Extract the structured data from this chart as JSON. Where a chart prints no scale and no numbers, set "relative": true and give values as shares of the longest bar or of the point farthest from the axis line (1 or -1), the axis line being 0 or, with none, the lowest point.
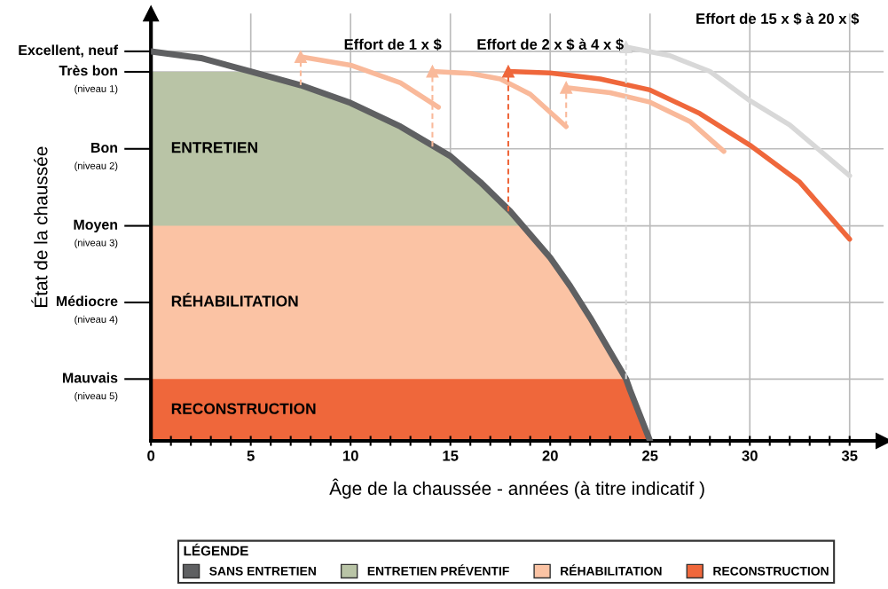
{
  "chart_data": {
    "type": "line",
    "relative": true,
    "xlabel": "Âge de la chaussée - années (à titre indicatif )",
    "legend_title": "LÉGENDE",
    "legend": "bottom",
    "grid": true,
    "xlim": [
      0,
      36.7
    ],
    "xticks": [
      0,
      {
        "value": 1,
        "label": null
      },
      {
        "value": 2,
        "label": null
      },
      {
        "value": 3,
        "label": null
      },
      {
        "value": 4,
        "label": null
      },
      5,
      {
        "value": 6,
        "label": null
      },
      {
        "value": 7,
        "label": null
      },
      {
        "value": 8,
        "label": null
      },
      {
        "value": 9,
        "label": null
      },
      10,
      {
        "value": 11,
        "label": null
      },
      {
        "value": 12,
        "label": null
      },
      {
        "value": 13,
        "label": null
      },
      {
        "value": 14,
        "label": null
      },
      15,
      {
        "value": 16,
        "label": null
      },
      {
        "value": 17,
        "label": null
      },
      {
        "value": 18,
        "label": null
      },
      {
        "value": 19,
        "label": null
      },
      20,
      {
        "value": 21,
        "label": null
      },
      {
        "value": 22,
        "label": null
      },
      {
        "value": 23,
        "label": null
      },
      {
        "value": 24,
        "label": null
      },
      25,
      {
        "value": 26,
        "label": null
      },
      {
        "value": 27,
        "label": null
      },
      {
        "value": 28,
        "label": null
      },
      {
        "value": 29,
        "label": null
      },
      30,
      {
        "value": 31,
        "label": null
      },
      {
        "value": 32,
        "label": null
      },
      {
        "value": 33,
        "label": null
      },
      {
        "value": 34,
        "label": null
      },
      35
    ],
    "series": [
      {
        "name": "ENTRETIEN PRÉVENTIF",
        "type": "area",
        "color": "#b9c4a6",
        "x": [
          0,
          5,
          7.5,
          10,
          12.5,
          15,
          16.5,
          18,
          18.6
        ],
        "values": [
          0.937,
          0.937,
          0.903,
          0.858,
          0.798,
          0.723,
          0.657,
          0.583,
          0.546
        ]
      },
      {
        "name": "RÉHABILITATION",
        "type": "area",
        "color": "#fbc3a4",
        "x": [
          0,
          18.6,
          20,
          21,
          22,
          23.8
        ],
        "values": [
          0.546,
          0.546,
          0.465,
          0.393,
          0.313,
          0.157
        ]
      },
      {
        "name": "RECONSTRUCTION",
        "type": "area",
        "color": "#ef673b",
        "x": [
          0,
          23.8,
          24,
          25
        ],
        "values": [
          0.157,
          0.157,
          0.129,
          0
        ]
      },
      {
        "name": "SANS ENTRETIEN",
        "color": "#5f6062",
        "x": [
          0,
          2.5,
          5,
          7.5,
          10,
          12.5,
          15,
          16.5,
          18,
          20,
          21,
          22,
          23.8,
          24,
          25
        ],
        "values": [
          0.989,
          0.972,
          0.938,
          0.903,
          0.858,
          0.798,
          0.723,
          0.657,
          0.583,
          0.465,
          0.393,
          0.313,
          0.157,
          0.129,
          0
        ]
      },
      {
        "color": "#f9b99a",
        "line_style": "dashed",
        "marker": "triangle",
        "x": [
          7.5,
          7.5
        ],
        "values": [
          0.903,
          0.975
        ]
      },
      {
        "color": "#f9b99a",
        "x": [
          7.5,
          10,
          12.5,
          14.4
        ],
        "values": [
          0.975,
          0.954,
          0.909,
          0.847
        ]
      },
      {
        "color": "#f9b99a",
        "line_style": "dashed",
        "marker": "triangle",
        "x": [
          14.1,
          14.1
        ],
        "values": [
          0.747,
          0.938
        ]
      },
      {
        "color": "#f9b99a",
        "x": [
          14.1,
          16,
          17.5,
          19,
          20.8
        ],
        "values": [
          0.938,
          0.933,
          0.919,
          0.88,
          0.798
        ]
      },
      {
        "color": "#ef673b",
        "line_style": "dashed",
        "marker": "triangle",
        "x": [
          17.9,
          17.9
        ],
        "values": [
          0.583,
          0.938
        ]
      },
      {
        "color": "#f9b99a",
        "line_style": "dashed",
        "marker": "triangle",
        "x": [
          20.8,
          20.8
        ],
        "values": [
          0.798,
          0.897
        ]
      },
      {
        "color": "#f9b99a",
        "x": [
          20.8,
          23,
          25,
          27,
          28.7
        ],
        "values": [
          0.897,
          0.884,
          0.86,
          0.811,
          0.735
        ]
      },
      {
        "color": "#ef673b",
        "x": [
          17.9,
          20,
          22.5,
          25,
          27.5,
          30,
          32.5,
          35
        ],
        "values": [
          0.938,
          0.934,
          0.919,
          0.891,
          0.831,
          0.751,
          0.657,
          0.512
        ]
      },
      {
        "color": "#dadada",
        "line_style": "dashed",
        "marker": "triangle",
        "x": [
          23.8,
          23.8
        ],
        "values": [
          0.157,
          1
        ]
      },
      {
        "color": "#d8d8d8",
        "x": [
          23.8,
          26,
          28,
          30,
          32,
          35
        ],
        "values": [
          1,
          0.978,
          0.938,
          0.864,
          0.802,
          0.673
        ]
      }
    ],
    "annotations": [
      "Excellent, neuf",
      "Très bon\n(niveau 1)",
      "Bon\n(niveau 2)",
      "Moyen\n(niveau 3)",
      "Médiocre\n(niveau 4)",
      "Mauvais\n(niveau 5)",
      "ENTRETIEN",
      "RÉHABILITATION",
      "RECONSTRUCTION",
      "Effort de 1 x $",
      "Effort de 2 x $ à 4 x $",
      "Effort de 15 x $ à 20 x $",
      "État de la chaussée"
    ]
  }
}
